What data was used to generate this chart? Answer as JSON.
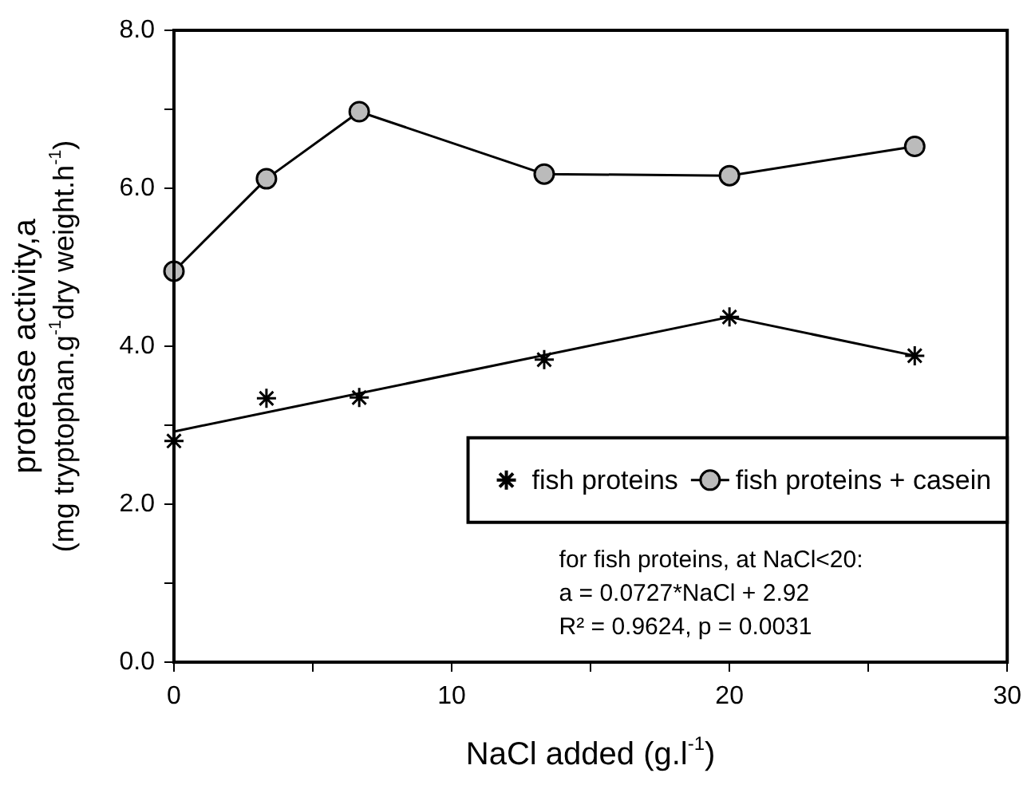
{
  "chart_data": {
    "type": "line",
    "xlabel": "NaCl added (g.l$^{-1}$)",
    "ylabel": "protease activity,a\n(mg tryptophan.g$^{-1}$dry weight.h$^{-1}$)",
    "series": [
      {
        "name": "fish proteins",
        "type": "scatter",
        "marker": "cross",
        "color": "#000000",
        "x": [
          0,
          3.33,
          6.67,
          13.33,
          20,
          26.67
        ],
        "values": [
          2.8,
          3.34,
          3.35,
          3.83,
          4.37,
          3.88
        ]
      },
      {
        "name": "fish proteins + casein",
        "marker": "circle",
        "color": "#000000",
        "x": [
          0,
          3.33,
          6.67,
          13.33,
          20,
          26.67
        ],
        "values": [
          4.95,
          6.12,
          6.97,
          6.18,
          6.16,
          6.53
        ]
      },
      {
        "marker": "none",
        "color": "#000000",
        "x": [
          0,
          20,
          26.67
        ],
        "values": [
          2.92,
          4.37,
          3.88
        ]
      }
    ],
    "xlim": [
      0,
      30
    ],
    "xticks": [
      0,
      {
        "value": 5,
        "label": null
      },
      10,
      {
        "value": 15,
        "label": null
      },
      20,
      {
        "value": 25,
        "label": null
      },
      30
    ],
    "ylim": [
      0,
      8
    ],
    "yticks": [
      {
        "value": 0,
        "label": "0.0"
      },
      {
        "value": 1,
        "label": null
      },
      {
        "value": 2,
        "label": "2.0"
      },
      {
        "value": 3,
        "label": null
      },
      {
        "value": 4,
        "label": "4.0"
      },
      {
        "value": 5,
        "label": null
      },
      {
        "value": 6,
        "label": "6.0"
      },
      {
        "value": 7,
        "label": null
      },
      {
        "value": 8,
        "label": "8.0"
      }
    ],
    "grid": false,
    "legend": "right",
    "annotations": [
      "for fish proteins, at NaCl<20:",
      "a = 0.0727*NaCl + 2.92",
      "R² = 0.9624, p = 0.0031"
    ]
  }
}
